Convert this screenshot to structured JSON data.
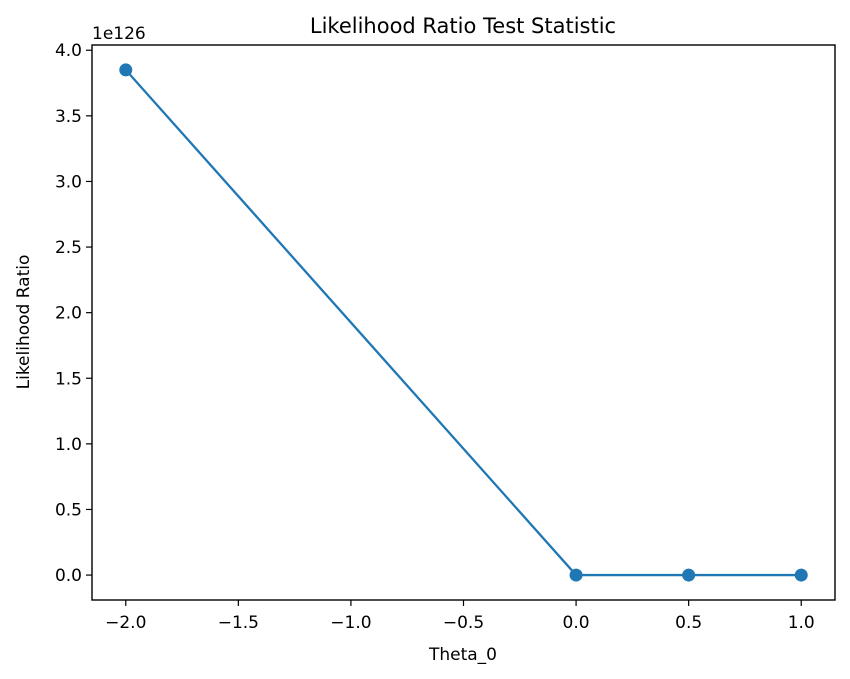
{
  "chart_data": {
    "type": "line",
    "title": "Likelihood Ratio Test Statistic",
    "xlabel": "Theta_0",
    "ylabel": "Likelihood Ratio",
    "y_offset_label": "1e126",
    "x": [
      -2.0,
      0.0,
      0.5,
      1.0
    ],
    "series": [
      {
        "values": [
          3.85,
          0.0,
          0.0,
          0.0
        ],
        "color": "#1f77b4",
        "marker": "circle"
      }
    ],
    "xlim": [
      -2.15,
      1.15
    ],
    "ylim": [
      -0.19,
      4.04
    ],
    "x_ticks": [
      -2.0,
      -1.5,
      -1.0,
      -0.5,
      0.0,
      0.5,
      1.0
    ],
    "x_tick_labels": [
      "−2.0",
      "−1.5",
      "−1.0",
      "−0.5",
      "0.0",
      "0.5",
      "1.0"
    ],
    "y_ticks": [
      0.0,
      0.5,
      1.0,
      1.5,
      2.0,
      2.5,
      3.0,
      3.5,
      4.0
    ],
    "y_tick_labels": [
      "0.0",
      "0.5",
      "1.0",
      "1.5",
      "2.0",
      "2.5",
      "3.0",
      "3.5",
      "4.0"
    ],
    "grid": false,
    "legend": false
  }
}
